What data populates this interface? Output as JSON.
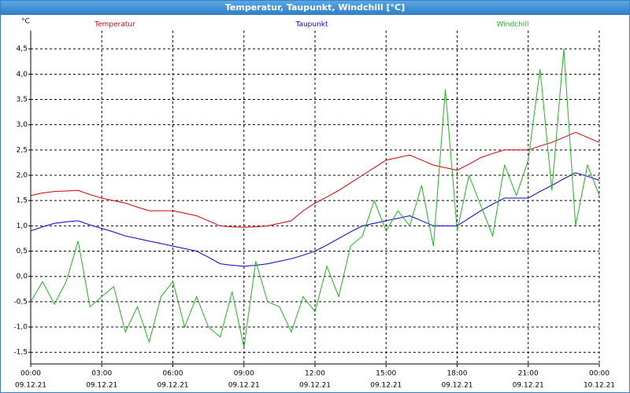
{
  "chart_data": {
    "type": "line",
    "title": "Temperatur, Taupunkt, Windchill [°C]",
    "y_unit": "°C",
    "x": [
      0,
      0.5,
      1,
      1.5,
      2,
      2.5,
      3,
      3.5,
      4,
      4.5,
      5,
      5.5,
      6,
      6.5,
      7,
      7.5,
      8,
      8.5,
      9,
      9.5,
      10,
      10.5,
      11,
      11.5,
      12,
      12.5,
      13,
      13.5,
      14,
      14.5,
      15,
      15.5,
      16,
      16.5,
      17,
      17.5,
      18,
      18.5,
      19,
      19.5,
      20,
      20.5,
      21,
      21.5,
      22,
      22.5,
      23,
      23.5,
      24
    ],
    "series": [
      {
        "name": "Temperatur",
        "color": "#cc0000",
        "values": [
          1.6,
          1.65,
          1.68,
          1.69,
          1.7,
          1.62,
          1.55,
          1.5,
          1.45,
          1.37,
          1.3,
          1.3,
          1.3,
          1.25,
          1.2,
          1.1,
          1.0,
          0.98,
          0.97,
          0.98,
          1.0,
          1.05,
          1.1,
          1.3,
          1.45,
          1.57,
          1.7,
          1.85,
          2.0,
          2.15,
          2.3,
          2.35,
          2.4,
          2.3,
          2.2,
          2.15,
          2.1,
          2.22,
          2.35,
          2.43,
          2.5,
          2.5,
          2.5,
          2.58,
          2.65,
          2.75,
          2.85,
          2.75,
          2.65
        ]
      },
      {
        "name": "Taupunkt",
        "color": "#0000cc",
        "values": [
          0.9,
          0.98,
          1.05,
          1.08,
          1.1,
          1.02,
          0.95,
          0.88,
          0.8,
          0.75,
          0.7,
          0.65,
          0.6,
          0.55,
          0.5,
          0.38,
          0.25,
          0.22,
          0.2,
          0.22,
          0.25,
          0.3,
          0.35,
          0.42,
          0.5,
          0.62,
          0.75,
          0.88,
          1.0,
          1.05,
          1.1,
          1.15,
          1.2,
          1.1,
          1.0,
          1.0,
          1.0,
          1.15,
          1.3,
          1.43,
          1.55,
          1.55,
          1.55,
          1.68,
          1.8,
          1.93,
          2.05,
          1.98,
          1.9
        ]
      },
      {
        "name": "Windchill",
        "color": "#22b322",
        "values": [
          -0.5,
          -0.1,
          -0.55,
          -0.1,
          0.7,
          -0.6,
          -0.4,
          -0.2,
          -1.1,
          -0.6,
          -1.3,
          -0.4,
          -0.1,
          -1.0,
          -0.4,
          -1.0,
          -1.2,
          -0.3,
          -1.4,
          0.3,
          -0.5,
          -0.6,
          -1.1,
          -0.4,
          -0.7,
          0.2,
          -0.4,
          0.6,
          0.8,
          1.5,
          0.9,
          1.3,
          1.0,
          1.8,
          0.6,
          3.7,
          0.9,
          2.0,
          1.4,
          0.8,
          2.2,
          1.6,
          2.3,
          4.1,
          1.7,
          4.5,
          1.0,
          2.2,
          1.6
        ]
      }
    ],
    "xlim": [
      0,
      24
    ],
    "xticks": [
      {
        "value": 0,
        "label": "00:00"
      },
      {
        "value": 3,
        "label": "03:00"
      },
      {
        "value": 6,
        "label": "06:00"
      },
      {
        "value": 9,
        "label": "09:00"
      },
      {
        "value": 12,
        "label": "12:00"
      },
      {
        "value": 15,
        "label": "15:00"
      },
      {
        "value": 18,
        "label": "18:00"
      },
      {
        "value": 21,
        "label": "21:00"
      },
      {
        "value": 24,
        "label": "00:00"
      }
    ],
    "xtick_dates": [
      "09.12.21",
      "09.12.21",
      "09.12.21",
      "09.12.21",
      "09.12.21",
      "09.12.21",
      "09.12.21",
      "09.12.21",
      "10.12.21"
    ],
    "ylim": [
      -1.73,
      4.86
    ],
    "yticks": [
      {
        "value": -1.5,
        "label": "-1,5"
      },
      {
        "value": -1,
        "label": "-1,0"
      },
      {
        "value": -0.5,
        "label": "-0,5"
      },
      {
        "value": 0,
        "label": "0,0"
      },
      {
        "value": 0.5,
        "label": "0,5"
      },
      {
        "value": 1,
        "label": "1,0"
      },
      {
        "value": 1.5,
        "label": "1,5"
      },
      {
        "value": 2,
        "label": "2,0"
      },
      {
        "value": 2.5,
        "label": "2,5"
      },
      {
        "value": 3,
        "label": "3,0"
      },
      {
        "value": 3.5,
        "label": "3,5"
      },
      {
        "value": 4,
        "label": "4,0"
      },
      {
        "value": 4.5,
        "label": "4,5"
      }
    ],
    "grid": true
  }
}
